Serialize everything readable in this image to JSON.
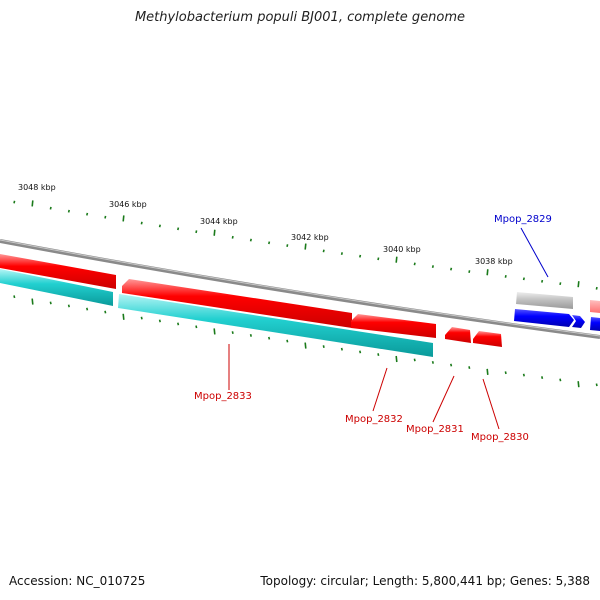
{
  "title": "Methylobacterium populi BJ001, complete genome",
  "footer": {
    "accession": "Accession: NC_010725",
    "summary": "Topology: circular; Length: 5,800,441 bp; Genes: 5,388"
  },
  "colors": {
    "forward_cds": "#ff0000",
    "forward_cds_selected": "#0000ff",
    "reverse_cds": "#00cccc",
    "backbone": "#808080",
    "tick": "#1a7a1a",
    "label_red": "#cc0000",
    "label_blue": "#0000cc"
  },
  "scale": {
    "unit": "kbp",
    "major_ticks": [
      {
        "label": "3048 kbp"
      },
      {
        "label": "3046 kbp"
      },
      {
        "label": "3044 kbp"
      },
      {
        "label": "3042 kbp"
      },
      {
        "label": "3040 kbp"
      },
      {
        "label": "3038 kbp"
      }
    ]
  },
  "genes": [
    {
      "name": "Mpop_2833",
      "strand": "+",
      "color": "red"
    },
    {
      "name": "Mpop_2832",
      "strand": "+",
      "color": "red"
    },
    {
      "name": "Mpop_2831",
      "strand": "-",
      "color": "red"
    },
    {
      "name": "Mpop_2830",
      "strand": "-",
      "color": "red"
    },
    {
      "name": "Mpop_2829",
      "strand": "+",
      "color": "blue"
    }
  ]
}
